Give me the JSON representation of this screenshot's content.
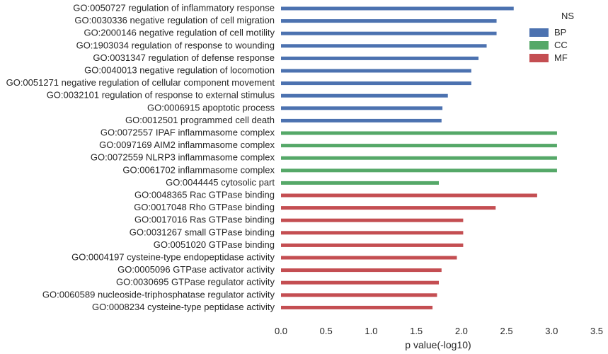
{
  "chart_data": {
    "type": "bar",
    "orientation": "horizontal",
    "xlabel": "p value(-log10)",
    "ylabel": "",
    "xlim": [
      0,
      3.5
    ],
    "xticks": [
      "0.0",
      "0.5",
      "1.0",
      "1.5",
      "2.0",
      "2.5",
      "3.0",
      "3.5"
    ],
    "grid": false,
    "legend": {
      "title": "NS",
      "placement": "top-right",
      "entries": [
        {
          "name": "BP",
          "color": "#4c72b0"
        },
        {
          "name": "CC",
          "color": "#55a868"
        },
        {
          "name": "MF",
          "color": "#c44e52"
        }
      ]
    },
    "categories": [
      "GO:0050727 regulation of inflammatory response",
      "GO:0030336 negative regulation of cell migration",
      "GO:2000146 negative regulation of cell motility",
      "GO:1903034 regulation of response to wounding",
      "GO:0031347 regulation of defense response",
      "GO:0040013 negative regulation of locomotion",
      "GO:0051271 negative regulation of cellular component movement",
      "GO:0032101 regulation of response to external stimulus",
      "GO:0006915 apoptotic process",
      "GO:0012501 programmed cell death",
      "GO:0072557 IPAF inflammasome complex",
      "GO:0097169 AIM2 inflammasome complex",
      "GO:0072559 NLRP3 inflammasome complex",
      "GO:0061702 inflammasome complex",
      "GO:0044445 cytosolic part",
      "GO:0048365 Rac GTPase binding",
      "GO:0017048 Rho GTPase binding",
      "GO:0017016 Ras GTPase binding",
      "GO:0031267 small GTPase binding",
      "GO:0051020 GTPase binding",
      "GO:0004197 cysteine-type endopeptidase activity",
      "GO:0005096 GTPase activator activity",
      "GO:0030695 GTPase regulator activity",
      "GO:0060589 nucleoside-triphosphatase regulator activity",
      "GO:0008234 cysteine-type peptidase activity"
    ],
    "values": [
      2.58,
      2.39,
      2.39,
      2.28,
      2.19,
      2.11,
      2.11,
      1.85,
      1.79,
      1.78,
      3.06,
      3.06,
      3.06,
      3.06,
      1.75,
      2.84,
      2.38,
      2.02,
      2.02,
      2.02,
      1.95,
      1.78,
      1.75,
      1.73,
      1.68
    ],
    "groups": [
      "BP",
      "BP",
      "BP",
      "BP",
      "BP",
      "BP",
      "BP",
      "BP",
      "BP",
      "BP",
      "CC",
      "CC",
      "CC",
      "CC",
      "CC",
      "MF",
      "MF",
      "MF",
      "MF",
      "MF",
      "MF",
      "MF",
      "MF",
      "MF",
      "MF"
    ]
  }
}
